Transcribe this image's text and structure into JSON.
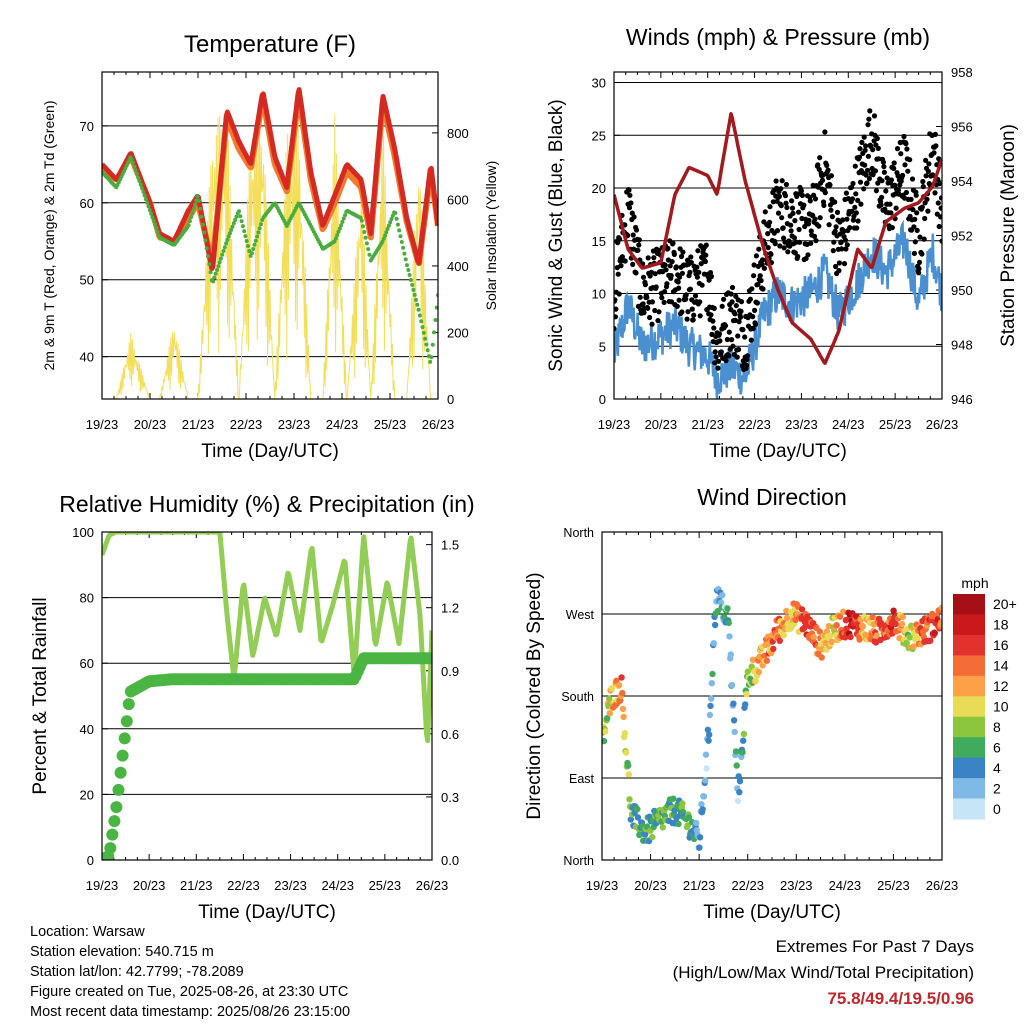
{
  "colors": {
    "temp_9m": "#d42a22",
    "temp_2m": "#f5792c",
    "dewpoint": "#4aab3f",
    "solar": "#f3de5a",
    "wind": "#4a8fcf",
    "gust": "#000000",
    "pressure": "#a21a1d",
    "rh": "#92cd55",
    "precip": "#4ab543",
    "extremes_text": "#c0272d"
  },
  "time_ticks": [
    "19/23",
    "20/23",
    "21/23",
    "22/23",
    "23/23",
    "24/23",
    "25/23",
    "26/23"
  ],
  "chart_data": [
    {
      "id": "temperature",
      "type": "line",
      "title": "Temperature (F)",
      "xlabel": "Time (Day/UTC)",
      "ylabel": "2m & 9m T (Red, Orange) & 2m Td (Green)",
      "ylabel_right": "Solar Insolation (Yellow)",
      "xlim": [
        0,
        7
      ],
      "ylim": [
        34.5,
        77
      ],
      "ylim_right": [
        0,
        983
      ],
      "yticks": [
        40,
        50,
        60,
        70
      ],
      "yticks_right": [
        0,
        200,
        400,
        600,
        800
      ],
      "x": [
        0,
        0.3,
        0.6,
        1.0,
        1.2,
        1.5,
        1.8,
        2.0,
        2.3,
        2.6,
        2.85,
        3.1,
        3.35,
        3.6,
        3.85,
        4.1,
        4.35,
        4.6,
        4.85,
        5.1,
        5.4,
        5.6,
        5.85,
        6.1,
        6.35,
        6.6,
        6.85,
        7.0
      ],
      "series": [
        {
          "key": "temp_9m",
          "values": [
            65,
            63,
            66.5,
            60,
            56,
            55,
            59,
            61,
            51,
            72,
            68,
            65,
            74.5,
            66,
            62,
            75,
            64,
            57,
            61,
            65,
            63,
            56,
            74,
            67,
            58,
            52,
            65,
            57
          ]
        },
        {
          "key": "temp_2m",
          "values": [
            64.5,
            63,
            66,
            60,
            55.5,
            55,
            58,
            60,
            52,
            71,
            67,
            64.5,
            73.5,
            65,
            61.5,
            74,
            63,
            56.5,
            60,
            64,
            62,
            55.5,
            73,
            66,
            57.5,
            52,
            64,
            57
          ]
        },
        {
          "key": "dewpoint",
          "values": [
            64,
            62,
            66,
            59,
            55.5,
            54.5,
            57,
            61,
            49.5,
            55,
            59,
            53,
            58,
            60,
            57,
            60,
            57,
            54,
            55,
            59,
            58,
            52.5,
            55,
            59,
            52,
            46,
            39,
            48
          ]
        },
        {
          "key": "solar",
          "axis": "right",
          "values": [
            0,
            0,
            200,
            0,
            0,
            240,
            0,
            0,
            820,
            900,
            0,
            820,
            890,
            0,
            800,
            860,
            0,
            0,
            860,
            0,
            700,
            0,
            850,
            0,
            0,
            780,
            0,
            0
          ]
        }
      ]
    },
    {
      "id": "winds",
      "type": "scatter",
      "title": "Winds (mph) & Pressure (mb)",
      "xlabel": "Time (Day/UTC)",
      "ylabel": "Sonic Wind & Gust (Blue, Black)",
      "ylabel_right": "Station Pressure (Maroon)",
      "xlim": [
        0,
        7
      ],
      "ylim": [
        0,
        31
      ],
      "ylim_right": [
        946,
        958
      ],
      "yticks": [
        0,
        5,
        10,
        15,
        20,
        25,
        30
      ],
      "yticks_right": [
        946,
        948,
        950,
        952,
        954,
        956,
        958
      ],
      "x": [
        0,
        0.3,
        0.6,
        1.0,
        1.3,
        1.6,
        2.0,
        2.2,
        2.5,
        2.8,
        3.2,
        3.5,
        3.8,
        4.2,
        4.5,
        4.8,
        5.2,
        5.5,
        5.8,
        6.2,
        6.5,
        6.8,
        7.0
      ],
      "series": [
        {
          "key": "wind",
          "values": [
            4,
            9,
            5,
            6,
            7,
            5,
            4,
            2,
            3,
            2,
            8,
            10,
            9,
            10,
            12,
            8,
            11,
            14,
            12,
            15,
            9,
            14,
            10
          ]
        },
        {
          "key": "gust",
          "values": [
            10,
            18,
            10,
            11,
            12,
            10,
            12,
            5,
            8,
            6,
            14,
            18,
            17,
            16,
            22,
            14,
            20,
            25,
            18,
            22,
            15,
            24,
            18
          ]
        },
        {
          "key": "pressure",
          "axis": "right",
          "values": [
            953.5,
            951.5,
            950.8,
            951.0,
            953.5,
            954.5,
            954.2,
            953.5,
            956.5,
            954.0,
            951.5,
            950.0,
            948.8,
            948.2,
            947.3,
            948.5,
            951.5,
            950.8,
            952.5,
            953.0,
            953.2,
            953.8,
            954.8
          ]
        }
      ]
    },
    {
      "id": "humidity",
      "type": "line",
      "title": "Relative Humidity (%) & Precipitation (in)",
      "xlabel": "Time (Day/UTC)",
      "ylabel": "Percent & Total Rainfall",
      "xlim": [
        0,
        7
      ],
      "ylim": [
        0,
        100
      ],
      "ylim_right": [
        0,
        1.56
      ],
      "yticks": [
        0,
        20,
        40,
        60,
        80,
        100
      ],
      "yticks_right": [
        "0.0",
        "0.3",
        "0.6",
        "0.9",
        "1.2",
        "1.5"
      ],
      "x": [
        0,
        0.15,
        0.3,
        0.6,
        1.0,
        1.5,
        1.9,
        2.3,
        2.5,
        2.65,
        2.8,
        3.0,
        3.2,
        3.45,
        3.7,
        3.95,
        4.2,
        4.45,
        4.65,
        4.9,
        5.15,
        5.35,
        5.55,
        5.8,
        6.05,
        6.3,
        6.55,
        6.75,
        6.9,
        7.0
      ],
      "series": [
        {
          "key": "rh",
          "values": [
            93,
            99,
            100,
            100,
            100,
            100,
            100,
            100,
            100,
            75,
            55,
            85,
            62,
            80,
            68,
            88,
            70,
            96,
            66,
            78,
            92,
            56,
            99,
            65,
            85,
            66,
            99,
            74,
            34,
            70
          ]
        },
        {
          "key": "precip",
          "axis": "right",
          "values": [
            0,
            0.02,
            0.24,
            0.8,
            0.85,
            0.86,
            0.86,
            0.86,
            0.86,
            0.86,
            0.86,
            0.86,
            0.86,
            0.86,
            0.86,
            0.86,
            0.86,
            0.86,
            0.86,
            0.86,
            0.86,
            0.86,
            0.96,
            0.96,
            0.96,
            0.96,
            0.96,
            0.96,
            0.96,
            0.96
          ]
        }
      ]
    },
    {
      "id": "direction",
      "type": "scatter",
      "title": "Wind Direction",
      "xlabel": "Time (Day/UTC)",
      "ylabel": "Direction (Colored By Speed)",
      "xlim": [
        0,
        7
      ],
      "ylim": [
        0,
        360
      ],
      "yticks": [
        {
          "value": 0,
          "label": "North"
        },
        {
          "value": 90,
          "label": "East"
        },
        {
          "value": 180,
          "label": "South"
        },
        {
          "value": 270,
          "label": "West"
        },
        {
          "value": 360,
          "label": "North"
        }
      ],
      "colorbar": {
        "title": "mph",
        "labels": [
          "20+",
          "18",
          "16",
          "14",
          "12",
          "10",
          "8",
          "6",
          "4",
          "2",
          "0"
        ],
        "colors": [
          "#a50f15",
          "#cb181d",
          "#e3312d",
          "#f46d36",
          "#fca147",
          "#e8dc57",
          "#8cc63f",
          "#41ab5d",
          "#3a84c5",
          "#7fb9e6",
          "#c6e6f8"
        ]
      },
      "x": [
        0,
        0.2,
        0.4,
        0.6,
        0.9,
        1.2,
        1.5,
        1.8,
        2.0,
        2.2,
        2.35,
        2.6,
        2.8,
        3.0,
        3.3,
        3.6,
        3.9,
        4.2,
        4.5,
        4.8,
        5.1,
        5.4,
        5.7,
        6.0,
        6.3,
        6.6,
        6.9,
        7.0
      ],
      "series": [
        {
          "name": "direction",
          "values": [
            130,
            180,
            190,
            50,
            30,
            45,
            55,
            40,
            20,
            140,
            290,
            265,
            70,
            200,
            220,
            250,
            270,
            260,
            235,
            255,
            260,
            255,
            250,
            265,
            245,
            250,
            260,
            265
          ],
          "speeds": [
            6,
            12,
            14,
            5,
            6,
            7,
            5,
            6,
            3,
            3,
            4,
            3,
            3,
            8,
            12,
            14,
            10,
            16,
            12,
            10,
            18,
            12,
            14,
            16,
            8,
            14,
            16,
            14
          ]
        }
      ]
    }
  ],
  "footer": {
    "location": "Location: Warsaw",
    "elevation": "Station elevation: 540.715 m",
    "latlon": "Station lat/lon: 42.7799; -78.2089",
    "created": "Figure created on Tue, 2025-08-26, at 23:30 UTC",
    "recent": "Most recent data timestamp: 2025/08/26 23:15:00"
  },
  "extremes": {
    "title": "Extremes For Past 7 Days",
    "subtitle": "(High/Low/Max Wind/Total Precipitation)",
    "values": "75.8/49.4/19.5/0.96"
  }
}
